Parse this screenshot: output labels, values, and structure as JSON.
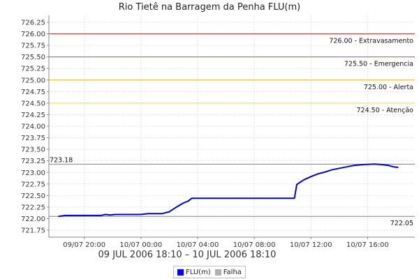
{
  "chart_data": {
    "type": "line",
    "title": "Rio Tietê na Barragem da Penha FLU(m)",
    "xlabel": "09 JUL 2006 18:10 – 10 JUL 2006 18:10",
    "ylabel": "",
    "ylim": [
      721.6,
      726.4
    ],
    "xlim": [
      "2006-07-09 17:30",
      "2006-07-10 19:20"
    ],
    "y_ticks": [
      "721.75",
      "722.00",
      "722.25",
      "722.50",
      "722.75",
      "723.00",
      "723.25",
      "723.50",
      "723.75",
      "724.00",
      "724.25",
      "724.50",
      "724.75",
      "725.00",
      "725.25",
      "725.50",
      "725.75",
      "726.00",
      "726.25"
    ],
    "x_ticks": [
      {
        "label": "09/07 20:00",
        "t": "2006-07-09 20:00"
      },
      {
        "label": "10/07 00:00",
        "t": "2006-07-10 00:00"
      },
      {
        "label": "10/07 04:00",
        "t": "2006-07-10 04:00"
      },
      {
        "label": "10/07 08:00",
        "t": "2006-07-10 08:00"
      },
      {
        "label": "10/07 12:00",
        "t": "2006-07-10 12:00"
      },
      {
        "label": "10/07 16:00",
        "t": "2006-07-10 16:00"
      }
    ],
    "grid": true,
    "thresholds": [
      {
        "value": 726.0,
        "label": "726.00 - Extravasamento",
        "color": "#cc3333"
      },
      {
        "value": 725.5,
        "label": "725.50 - Emergencia",
        "color": "#cc33cc"
      },
      {
        "value": 725.0,
        "label": "725.00 - Alerta",
        "color": "#e6b800"
      },
      {
        "value": 724.5,
        "label": "724.50 - Atenção",
        "color": "#e6e600"
      }
    ],
    "reference_lines": [
      {
        "value": 723.18,
        "label": "723.18",
        "side": "left",
        "color": "#808080"
      },
      {
        "value": 722.05,
        "label": "722.05",
        "side": "right",
        "color": "#808080"
      }
    ],
    "series": [
      {
        "name": "FLU(m)",
        "color": "#0000dd",
        "points": [
          {
            "t": "2006-07-09 18:10",
            "y": 722.05
          },
          {
            "t": "2006-07-09 18:40",
            "y": 722.07
          },
          {
            "t": "2006-07-09 21:10",
            "y": 722.07
          },
          {
            "t": "2006-07-09 21:30",
            "y": 722.09
          },
          {
            "t": "2006-07-09 21:50",
            "y": 722.08
          },
          {
            "t": "2006-07-09 22:10",
            "y": 722.09
          },
          {
            "t": "2006-07-10 00:00",
            "y": 722.09
          },
          {
            "t": "2006-07-10 00:30",
            "y": 722.11
          },
          {
            "t": "2006-07-10 01:30",
            "y": 722.11
          },
          {
            "t": "2006-07-10 02:00",
            "y": 722.15
          },
          {
            "t": "2006-07-10 02:30",
            "y": 722.25
          },
          {
            "t": "2006-07-10 03:00",
            "y": 722.34
          },
          {
            "t": "2006-07-10 03:20",
            "y": 722.38
          },
          {
            "t": "2006-07-10 03:35",
            "y": 722.44
          },
          {
            "t": "2006-07-10 04:00",
            "y": 722.44
          },
          {
            "t": "2006-07-10 08:00",
            "y": 722.44
          },
          {
            "t": "2006-07-10 10:50",
            "y": 722.44
          },
          {
            "t": "2006-07-10 11:00",
            "y": 722.74
          },
          {
            "t": "2006-07-10 11:30",
            "y": 722.84
          },
          {
            "t": "2006-07-10 12:00",
            "y": 722.91
          },
          {
            "t": "2006-07-10 12:30",
            "y": 722.97
          },
          {
            "t": "2006-07-10 13:00",
            "y": 723.01
          },
          {
            "t": "2006-07-10 13:30",
            "y": 723.06
          },
          {
            "t": "2006-07-10 14:00",
            "y": 723.09
          },
          {
            "t": "2006-07-10 14:30",
            "y": 723.12
          },
          {
            "t": "2006-07-10 15:00",
            "y": 723.15
          },
          {
            "t": "2006-07-10 15:40",
            "y": 723.17
          },
          {
            "t": "2006-07-10 16:30",
            "y": 723.18
          },
          {
            "t": "2006-07-10 17:00",
            "y": 723.17
          },
          {
            "t": "2006-07-10 17:30",
            "y": 723.15
          },
          {
            "t": "2006-07-10 17:50",
            "y": 723.12
          },
          {
            "t": "2006-07-10 18:10",
            "y": 723.11
          }
        ]
      }
    ],
    "legend": {
      "placement": "bottom-center",
      "items": [
        {
          "name": "FLU(m)",
          "color": "#0000ff"
        },
        {
          "name": "Falha",
          "color": "#b0b0b0"
        }
      ]
    }
  }
}
